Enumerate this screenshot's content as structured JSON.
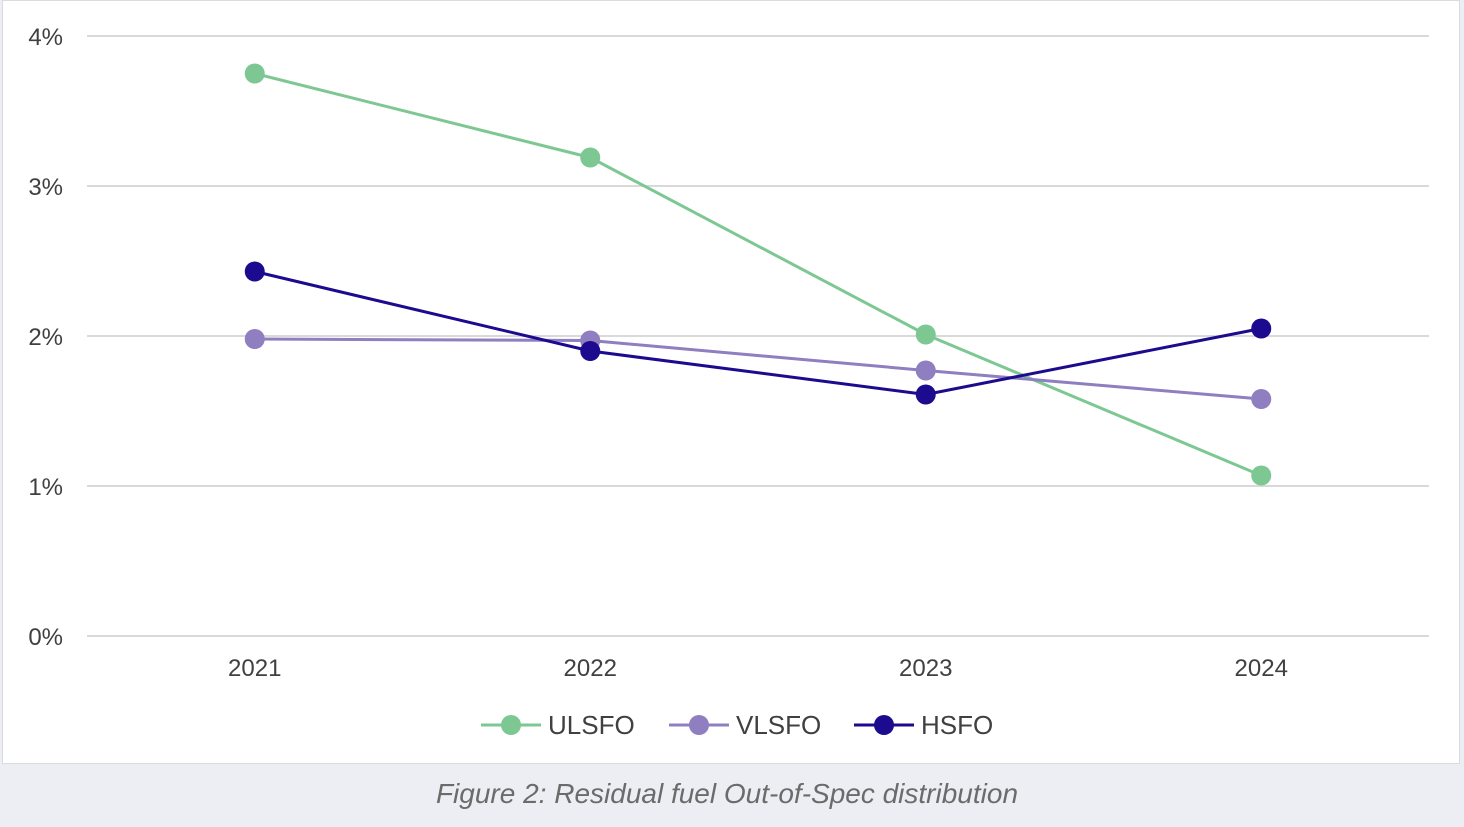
{
  "caption": "Figure 2: Residual fuel Out-of-Spec distribution",
  "chart_data": {
    "type": "line",
    "categories": [
      "2021",
      "2022",
      "2023",
      "2024"
    ],
    "series": [
      {
        "name": "ULSFO",
        "color": "#7dc793",
        "values": [
          3.75,
          3.19,
          2.01,
          1.07
        ]
      },
      {
        "name": "VLSFO",
        "color": "#8f7ec0",
        "values": [
          1.98,
          1.97,
          1.77,
          1.58
        ]
      },
      {
        "name": "HSFO",
        "color": "#1c0a8f",
        "values": [
          2.43,
          1.9,
          1.61,
          2.05
        ]
      }
    ],
    "yticks": [
      "0%",
      "1%",
      "2%",
      "3%",
      "4%"
    ],
    "ylim": [
      0,
      4
    ],
    "grid": true,
    "legend_position": "bottom-center"
  }
}
